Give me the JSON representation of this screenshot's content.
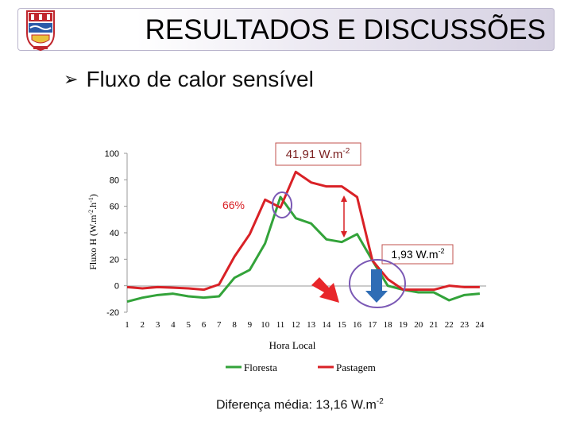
{
  "slide": {
    "title": "RESULTADOS E DISCUSSÕES",
    "bullet": "Fluxo de calor sensível",
    "footer_prefix": "Diferença média: 13,16 W.m",
    "footer_exp": "-2"
  },
  "annotations": {
    "peak_prefix": "41,91 W.m",
    "peak_exp": "-2",
    "percent": "66%",
    "evening_prefix": "1,93 W.m",
    "evening_exp": "-2"
  },
  "colors": {
    "floresta": "#33a33a",
    "pastagem": "#d92126",
    "box": "#c0504d",
    "circle": "#7b59b5",
    "arrow_red": "#e8262a",
    "arrow_blue": "#2f6db5"
  },
  "chart_data": {
    "type": "line",
    "xlabel": "Hora Local",
    "ylabel": "Fluxo H (W.m",
    "ylabel_exp1": "-2",
    "ylabel_mid": ".h",
    "ylabel_exp2": "-1",
    "ylabel_end": ")",
    "ylim": [
      -20,
      100
    ],
    "yticks": [
      -20,
      0,
      20,
      40,
      60,
      80,
      100
    ],
    "x": [
      1,
      2,
      3,
      4,
      5,
      6,
      7,
      8,
      9,
      10,
      11,
      12,
      13,
      14,
      15,
      16,
      17,
      18,
      19,
      20,
      21,
      22,
      23,
      24
    ],
    "series": [
      {
        "name": "Floresta",
        "values": [
          -12,
          -9,
          -7,
          -6,
          -8,
          -9,
          -8,
          6,
          12,
          32,
          67,
          51,
          47,
          35,
          33,
          39,
          19,
          0,
          -3,
          -5,
          -5,
          -11,
          -7,
          -6
        ]
      },
      {
        "name": "Pastagem",
        "values": [
          -1,
          -2,
          -1,
          -1.5,
          -2,
          -3,
          1,
          22,
          39,
          65,
          59,
          86,
          78,
          75,
          75,
          67,
          19,
          5,
          -3,
          -3,
          -3,
          0,
          -1,
          -1
        ]
      }
    ],
    "legend_position": "bottom",
    "grid": false
  }
}
